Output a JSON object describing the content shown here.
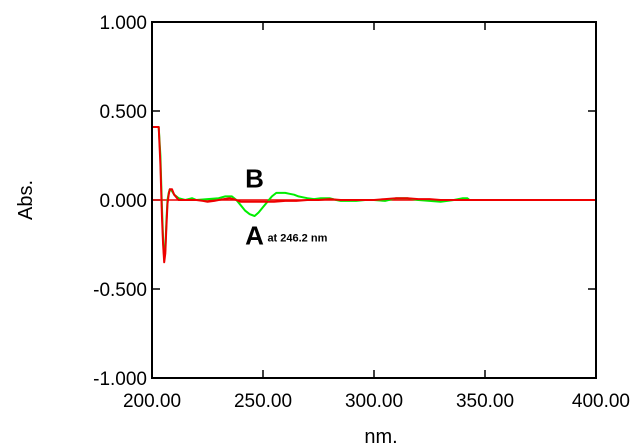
{
  "chart_data": {
    "type": "line",
    "title": "",
    "xlabel": "nm.",
    "ylabel": "Abs.",
    "xlim": [
      200,
      400
    ],
    "ylim": [
      -1.0,
      1.0
    ],
    "grid": false,
    "xticks": [
      200,
      250,
      300,
      350,
      400
    ],
    "xtick_labels": [
      "200.00",
      "250.00",
      "300.00",
      "350.00",
      "400.00"
    ],
    "yticks": [
      1.0,
      0.5,
      0.0,
      -0.5,
      -1.0
    ],
    "ytick_labels": [
      "1.000",
      "0.500",
      "0.000",
      "-0.500",
      "-1.000"
    ],
    "series": [
      {
        "color": "#00ee00",
        "x": [
          200,
          202,
          203,
          203.8,
          204.5,
          205,
          205.5,
          206,
          206.5,
          207,
          207.5,
          208,
          209,
          210,
          212,
          215,
          218,
          220,
          225,
          230,
          233,
          236,
          238,
          240,
          242,
          244,
          246.2,
          248,
          250,
          252,
          254,
          256,
          258,
          260,
          262,
          264,
          266,
          268,
          270,
          273,
          276,
          280,
          283,
          285,
          288,
          292,
          296,
          300,
          305,
          310,
          315,
          320,
          325,
          330,
          333,
          336,
          340,
          342,
          343
        ],
        "y": [
          0.41,
          0.41,
          0.41,
          0.25,
          -0.05,
          -0.22,
          -0.33,
          -0.28,
          -0.12,
          0.0,
          0.04,
          0.06,
          0.05,
          0.03,
          0.01,
          0.0,
          0.01,
          0.0,
          0.005,
          0.01,
          0.02,
          0.02,
          0.0,
          -0.03,
          -0.06,
          -0.08,
          -0.09,
          -0.07,
          -0.04,
          -0.01,
          0.02,
          0.04,
          0.04,
          0.04,
          0.035,
          0.03,
          0.02,
          0.015,
          0.01,
          0.005,
          0.01,
          0.01,
          0.0,
          -0.005,
          -0.005,
          -0.005,
          0.0,
          0.0,
          -0.005,
          0.01,
          0.01,
          0.0,
          -0.005,
          -0.01,
          -0.005,
          0.0,
          0.01,
          0.01,
          0.0
        ]
      },
      {
        "color": "#ee0000",
        "x": [
          200,
          202,
          203,
          203.8,
          204.5,
          205,
          205.5,
          206,
          206.5,
          207,
          207.5,
          208,
          209,
          210,
          212,
          215,
          218,
          220,
          223,
          225,
          228,
          230,
          235,
          238,
          240,
          245,
          250,
          255,
          260,
          265,
          270,
          275,
          280,
          285,
          290,
          295,
          300,
          305,
          310,
          315,
          320,
          325,
          330,
          335,
          340,
          345,
          350,
          360,
          380,
          400
        ],
        "y": [
          0.41,
          0.41,
          0.41,
          0.2,
          -0.1,
          -0.25,
          -0.35,
          -0.3,
          -0.15,
          -0.02,
          0.03,
          0.06,
          0.06,
          0.03,
          0.0,
          0.0,
          0.0,
          0.0,
          -0.005,
          -0.01,
          -0.005,
          0.0,
          0.01,
          0.0,
          -0.01,
          -0.01,
          -0.01,
          -0.01,
          -0.005,
          -0.005,
          0.0,
          0.0,
          0.005,
          0.0,
          0.0,
          0.0,
          0.0,
          0.005,
          0.01,
          0.01,
          0.005,
          0.005,
          0.0,
          0.0,
          0.0,
          0.0,
          0.0,
          0.0,
          0.0,
          0.0
        ]
      }
    ],
    "annotations": [
      {
        "text": "B",
        "x": 246,
        "y": 0.12
      },
      {
        "text": "A",
        "x": 246,
        "y": -0.2
      },
      {
        "text": "at 246.2 nm",
        "x": 252,
        "y": -0.21
      }
    ]
  }
}
